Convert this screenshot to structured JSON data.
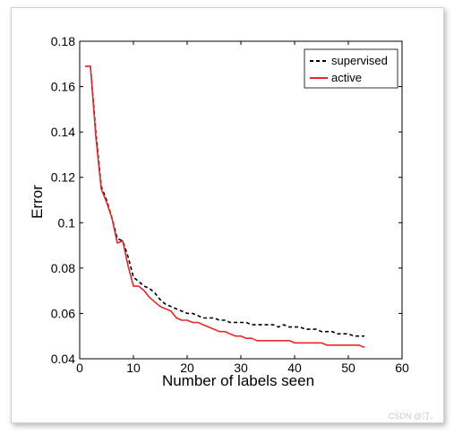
{
  "chart_data": {
    "type": "line",
    "title": "",
    "xlabel": "Number of labels seen",
    "ylabel": "Error",
    "xlim": [
      0,
      60
    ],
    "ylim": [
      0.04,
      0.18
    ],
    "xticks": [
      0,
      10,
      20,
      30,
      40,
      50,
      60
    ],
    "xtick_labels": [
      "0",
      "10",
      "20",
      "30",
      "40",
      "50",
      "60"
    ],
    "yticks": [
      0.04,
      0.06,
      0.08,
      0.1,
      0.12,
      0.14,
      0.16,
      0.18
    ],
    "ytick_labels": [
      "0.04",
      "0.06",
      "0.08",
      "0.1",
      "0.12",
      "0.14",
      "0.16",
      "0.18"
    ],
    "grid": false,
    "legend_position": "top-right",
    "series": [
      {
        "name": "supervised",
        "color": "#000000",
        "style": "dashed",
        "x": [
          1,
          2,
          3,
          4,
          5,
          6,
          7,
          8,
          9,
          10,
          11,
          12,
          13,
          14,
          15,
          16,
          17,
          18,
          19,
          20,
          21,
          22,
          23,
          24,
          25,
          26,
          27,
          28,
          29,
          30,
          31,
          32,
          33,
          34,
          35,
          36,
          37,
          38,
          39,
          40,
          41,
          42,
          43,
          44,
          45,
          46,
          47,
          48,
          49,
          50,
          51,
          52,
          53
        ],
        "y": [
          0.169,
          0.169,
          0.14,
          0.116,
          0.11,
          0.102,
          0.093,
          0.092,
          0.085,
          0.076,
          0.074,
          0.072,
          0.071,
          0.069,
          0.066,
          0.064,
          0.063,
          0.062,
          0.061,
          0.06,
          0.06,
          0.059,
          0.058,
          0.058,
          0.058,
          0.057,
          0.057,
          0.056,
          0.056,
          0.056,
          0.056,
          0.055,
          0.055,
          0.055,
          0.055,
          0.055,
          0.054,
          0.055,
          0.054,
          0.054,
          0.054,
          0.053,
          0.053,
          0.053,
          0.052,
          0.052,
          0.052,
          0.051,
          0.051,
          0.051,
          0.05,
          0.05,
          0.05
        ]
      },
      {
        "name": "active",
        "color": "#e8262c",
        "style": "solid",
        "x": [
          1,
          2,
          3,
          4,
          5,
          6,
          7,
          8,
          9,
          10,
          11,
          12,
          13,
          14,
          15,
          16,
          17,
          18,
          19,
          20,
          21,
          22,
          23,
          24,
          25,
          26,
          27,
          28,
          29,
          30,
          31,
          32,
          33,
          34,
          35,
          36,
          37,
          38,
          39,
          40,
          41,
          42,
          43,
          44,
          45,
          46,
          47,
          48,
          49,
          50,
          51,
          52,
          53
        ],
        "y": [
          0.169,
          0.169,
          0.138,
          0.115,
          0.109,
          0.102,
          0.091,
          0.092,
          0.081,
          0.072,
          0.072,
          0.07,
          0.067,
          0.065,
          0.063,
          0.062,
          0.061,
          0.058,
          0.057,
          0.057,
          0.056,
          0.056,
          0.055,
          0.054,
          0.053,
          0.052,
          0.052,
          0.051,
          0.05,
          0.05,
          0.049,
          0.049,
          0.048,
          0.048,
          0.048,
          0.048,
          0.048,
          0.048,
          0.048,
          0.047,
          0.047,
          0.047,
          0.047,
          0.047,
          0.047,
          0.046,
          0.046,
          0.046,
          0.046,
          0.046,
          0.046,
          0.046,
          0.045
        ]
      }
    ]
  },
  "watermark": "CSDN @汀、"
}
